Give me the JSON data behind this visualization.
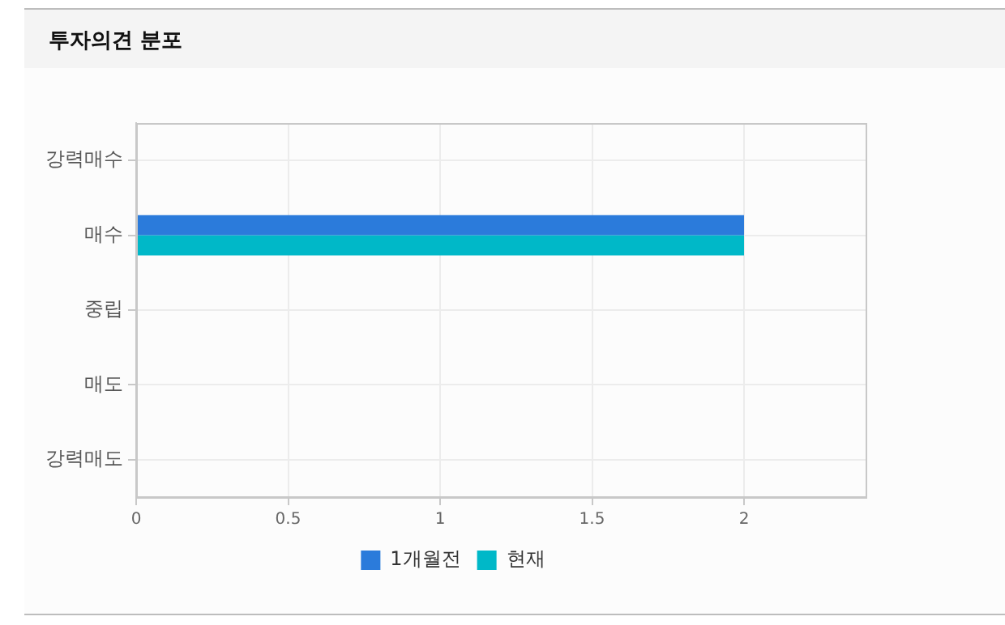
{
  "chart_data": {
    "type": "bar",
    "title": "투자의견 분포",
    "orientation": "horizontal",
    "categories": [
      "강력매수",
      "매수",
      "중립",
      "매도",
      "강력매도"
    ],
    "series": [
      {
        "name": "1개월전",
        "color": "#2b7bdb",
        "values": [
          0,
          2,
          0,
          0,
          0
        ]
      },
      {
        "name": "현재",
        "color": "#00b8c8",
        "values": [
          0,
          2,
          0,
          0,
          0
        ]
      }
    ],
    "xlim": [
      0,
      2.4
    ],
    "xticks": [
      0,
      0.5,
      1,
      1.5,
      2
    ],
    "grid": true,
    "legend": "bottom"
  }
}
